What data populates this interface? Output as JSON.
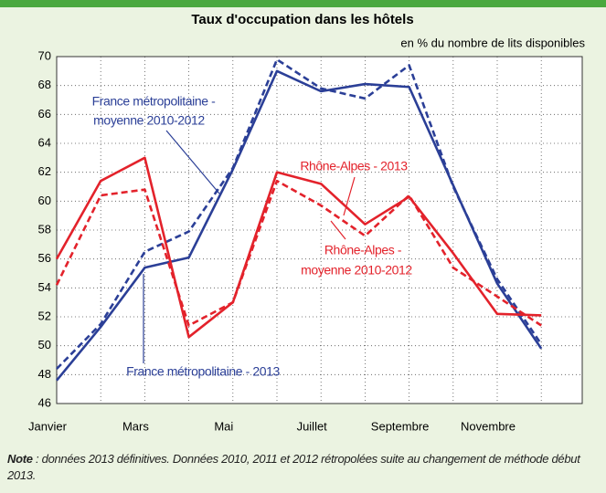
{
  "chart_data": {
    "type": "line",
    "title": "Taux d'occupation dans les hôtels",
    "subtitle": "en % du nombre de lits disponibles",
    "categories": [
      "Janvier",
      null,
      "Mars",
      null,
      "Mai",
      null,
      "Juillet",
      null,
      "Septembre",
      null,
      "Novembre",
      null
    ],
    "series": [
      {
        "name": "France métropolitaine - 2013",
        "color": "#2b3f97",
        "dashed": false,
        "values": [
          47.6,
          51.3,
          55.4,
          56.1,
          62.2,
          69.0,
          67.6,
          68.1,
          67.9,
          61.1,
          54.3,
          49.8
        ]
      },
      {
        "name": "France métropolitaine - moyenne 2010-2012",
        "color": "#2b3f97",
        "dashed": true,
        "values": [
          48.4,
          51.5,
          56.5,
          57.9,
          62.3,
          69.8,
          67.8,
          67.1,
          69.4,
          61.0,
          54.6,
          50.1
        ]
      },
      {
        "name": "Rhône-Alpes - 2013",
        "color": "#e3222b",
        "dashed": false,
        "values": [
          56.0,
          61.4,
          63.0,
          50.6,
          53.0,
          62.0,
          61.2,
          58.4,
          60.3,
          56.4,
          52.2,
          52.1
        ]
      },
      {
        "name": "Rhône-Alpes - moyenne 2010-2012",
        "color": "#e3222b",
        "dashed": true,
        "values": [
          54.2,
          60.4,
          60.8,
          51.4,
          53.0,
          61.4,
          59.7,
          57.6,
          60.4,
          55.4,
          53.4,
          51.4
        ]
      }
    ],
    "annotations": [
      {
        "lines": [
          "France métropolitaine -",
          "moyenne 2010-2012"
        ],
        "color": "#2b3f97"
      },
      {
        "lines": [
          "Rhône-Alpes - 2013"
        ],
        "color": "#e3222b"
      },
      {
        "lines": [
          "Rhône-Alpes -",
          "moyenne 2010-2012"
        ],
        "color": "#e3222b"
      },
      {
        "lines": [
          "France métropolitaine - 2013"
        ],
        "color": "#2b3f97"
      }
    ],
    "ylim": [
      46,
      70
    ],
    "yticks": [
      46,
      48,
      50,
      52,
      54,
      56,
      58,
      60,
      62,
      64,
      66,
      68,
      70
    ],
    "grid": true,
    "note_label": "Note",
    "note_text": " : données 2013 définitives. Données 2010, 2011 et 2012 rétropolées suite au changement de méthode début 2013."
  }
}
